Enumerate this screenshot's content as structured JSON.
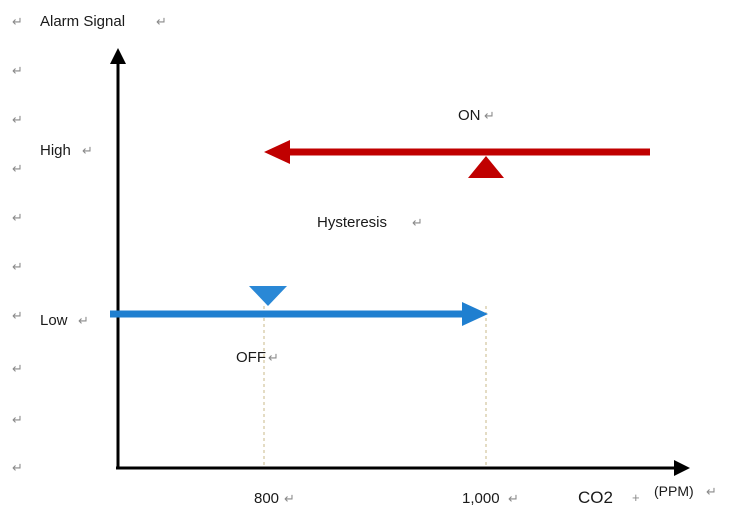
{
  "y_axis": {
    "label": "Alarm Signal"
  },
  "x_axis": {
    "unit": "CO2",
    "unit_suffix": "(PPM)"
  },
  "levels": {
    "high": "High",
    "low": "Low"
  },
  "thresholds": {
    "off_value": "800",
    "on_value": "1,000"
  },
  "annotations": {
    "on": "ON",
    "off": "OFF",
    "hysteresis": "Hysteresis"
  },
  "paragraph_mark": "↵",
  "colors": {
    "high_line": "#c00000",
    "low_line": "#1f7fd0",
    "transition_top": "#e8334f",
    "transition_mid": "#8a5aa8",
    "transition_bottom": "#2a6fc0",
    "axis": "#000000",
    "guide": "#c8b98a"
  }
}
